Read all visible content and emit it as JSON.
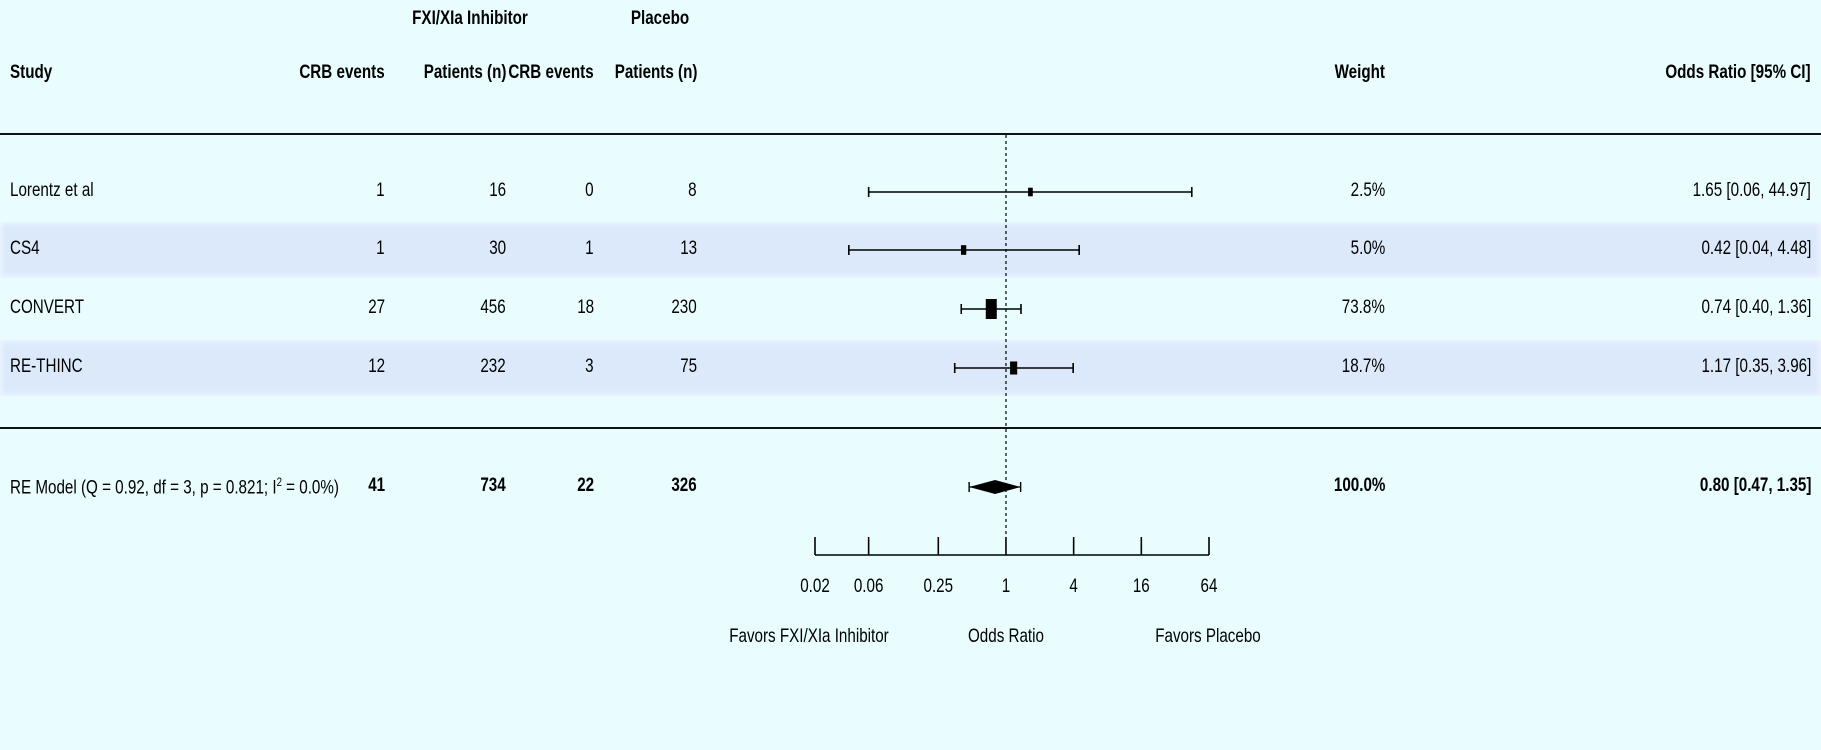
{
  "header": {
    "group_intervention": "FXI/XIa Inhibitor",
    "group_placebo": "Placebo",
    "study": "Study",
    "crb_events": "CRB events",
    "patients_n": "Patients (n)",
    "weight": "Weight",
    "odds_ratio_ci": "Odds Ratio [95% CI]"
  },
  "studies": [
    {
      "name": "Lorentz et al",
      "int_events": "1",
      "int_n": "16",
      "pla_events": "0",
      "pla_n": "8",
      "weight": "2.5%",
      "or_text": "1.65 [0.06, 44.97]"
    },
    {
      "name": "CS4",
      "int_events": "1",
      "int_n": "30",
      "pla_events": "1",
      "pla_n": "13",
      "weight": "5.0%",
      "or_text": "0.42 [0.04,  4.48]"
    },
    {
      "name": "CONVERT",
      "int_events": "27",
      "int_n": "456",
      "pla_events": "18",
      "pla_n": "230",
      "weight": "73.8%",
      "or_text": "0.74 [0.40,  1.36]"
    },
    {
      "name": "RE-THINC",
      "int_events": "12",
      "int_n": "232",
      "pla_events": "3",
      "pla_n": "75",
      "weight": "18.7%",
      "or_text": "1.17 [0.35,  3.96]"
    }
  ],
  "summary": {
    "label_prefix": "RE Model (Q = 0.92, df = 3, p = 0.821; I",
    "label_sup": "2",
    "label_suffix": " = 0.0%)",
    "int_events": "41",
    "int_n": "734",
    "pla_events": "22",
    "pla_n": "326",
    "weight": "100.0%",
    "or_text": "0.80 [0.47,  1.35]"
  },
  "chart_data": {
    "type": "forest",
    "scale": "log",
    "xlabel": "Odds Ratio",
    "left_annotation": "Favors FXI/XIa Inhibitor",
    "right_annotation": "Favors Placebo",
    "reference_line": 1,
    "ticks": [
      0.02,
      0.06,
      0.25,
      1,
      4,
      16,
      64
    ],
    "tick_labels": [
      "0.02",
      "0.06",
      "0.25",
      "1",
      "4",
      "16",
      "64"
    ],
    "xlim": [
      0.02,
      64
    ],
    "series": [
      {
        "name": "Lorentz et al",
        "or": 1.65,
        "lower": 0.06,
        "upper": 44.97,
        "weight": 2.5
      },
      {
        "name": "CS4",
        "or": 0.42,
        "lower": 0.04,
        "upper": 4.48,
        "weight": 5.0
      },
      {
        "name": "CONVERT",
        "or": 0.74,
        "lower": 0.4,
        "upper": 1.36,
        "weight": 73.8
      },
      {
        "name": "RE-THINC",
        "or": 1.17,
        "lower": 0.35,
        "upper": 3.96,
        "weight": 18.7
      }
    ],
    "pooled": {
      "name": "RE Model",
      "or": 0.8,
      "lower": 0.47,
      "upper": 1.35,
      "weight": 100.0
    }
  }
}
